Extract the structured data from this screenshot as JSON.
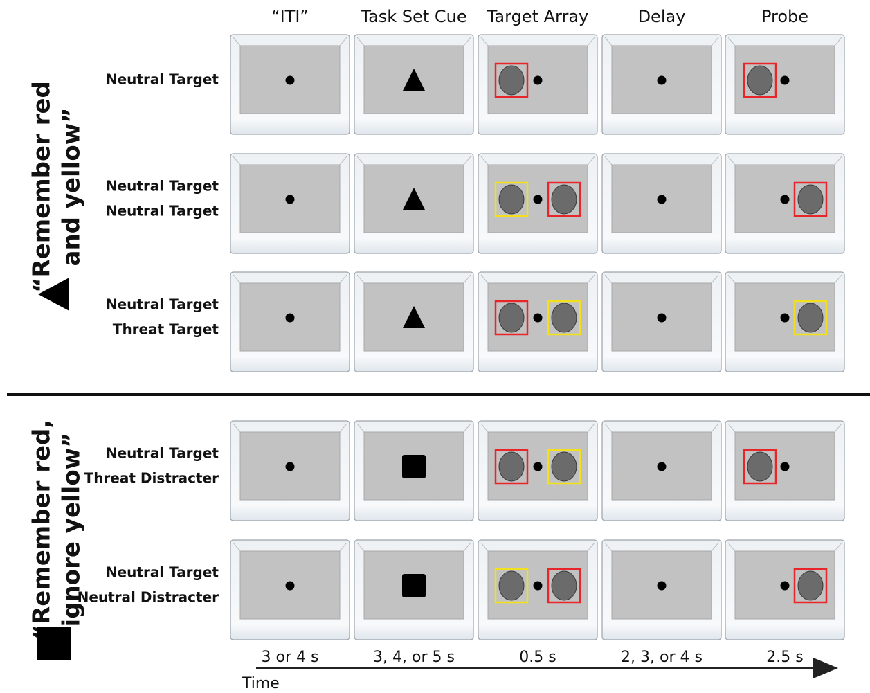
{
  "columns": [
    "“ITI”",
    "Task Set Cue",
    "Target Array",
    "Delay",
    "Probe"
  ],
  "groups": [
    {
      "label": [
        "“Remember red",
        "and yellow”"
      ],
      "cue": "triangle",
      "rows": [
        {
          "label": [
            "Neutral Target"
          ],
          "array": [
            "#e8262a"
          ],
          "probe": {
            "side": "left",
            "frame": "#e8262a"
          }
        },
        {
          "label": [
            "Neutral Target",
            "Neutral Target"
          ],
          "array": [
            "#f2e01c",
            "#e8262a"
          ],
          "probe": {
            "side": "right",
            "frame": "#e8262a"
          }
        },
        {
          "label": [
            "Neutral Target",
            "Threat Target"
          ],
          "array": [
            "#e8262a",
            "#f2e01c"
          ],
          "probe": {
            "side": "right",
            "frame": "#f2e01c"
          }
        }
      ]
    },
    {
      "label": [
        "“Remember red,",
        "ignore yellow”"
      ],
      "cue": "square",
      "rows": [
        {
          "label": [
            "Neutral Target",
            "Threat Distracter"
          ],
          "array": [
            "#e8262a",
            "#f2e01c"
          ],
          "probe": {
            "side": "left",
            "frame": "#e8262a"
          }
        },
        {
          "label": [
            "Neutral Target",
            "Neutral Distracter"
          ],
          "array": [
            "#f2e01c",
            "#e8262a"
          ],
          "probe": {
            "side": "right",
            "frame": "#e8262a"
          }
        }
      ]
    }
  ],
  "timeline": {
    "durations": [
      "3 or 4 s",
      "3, 4, or 5 s",
      "0.5 s",
      "2, 3, or 4 s",
      "2.5 s"
    ],
    "label": "Time"
  }
}
